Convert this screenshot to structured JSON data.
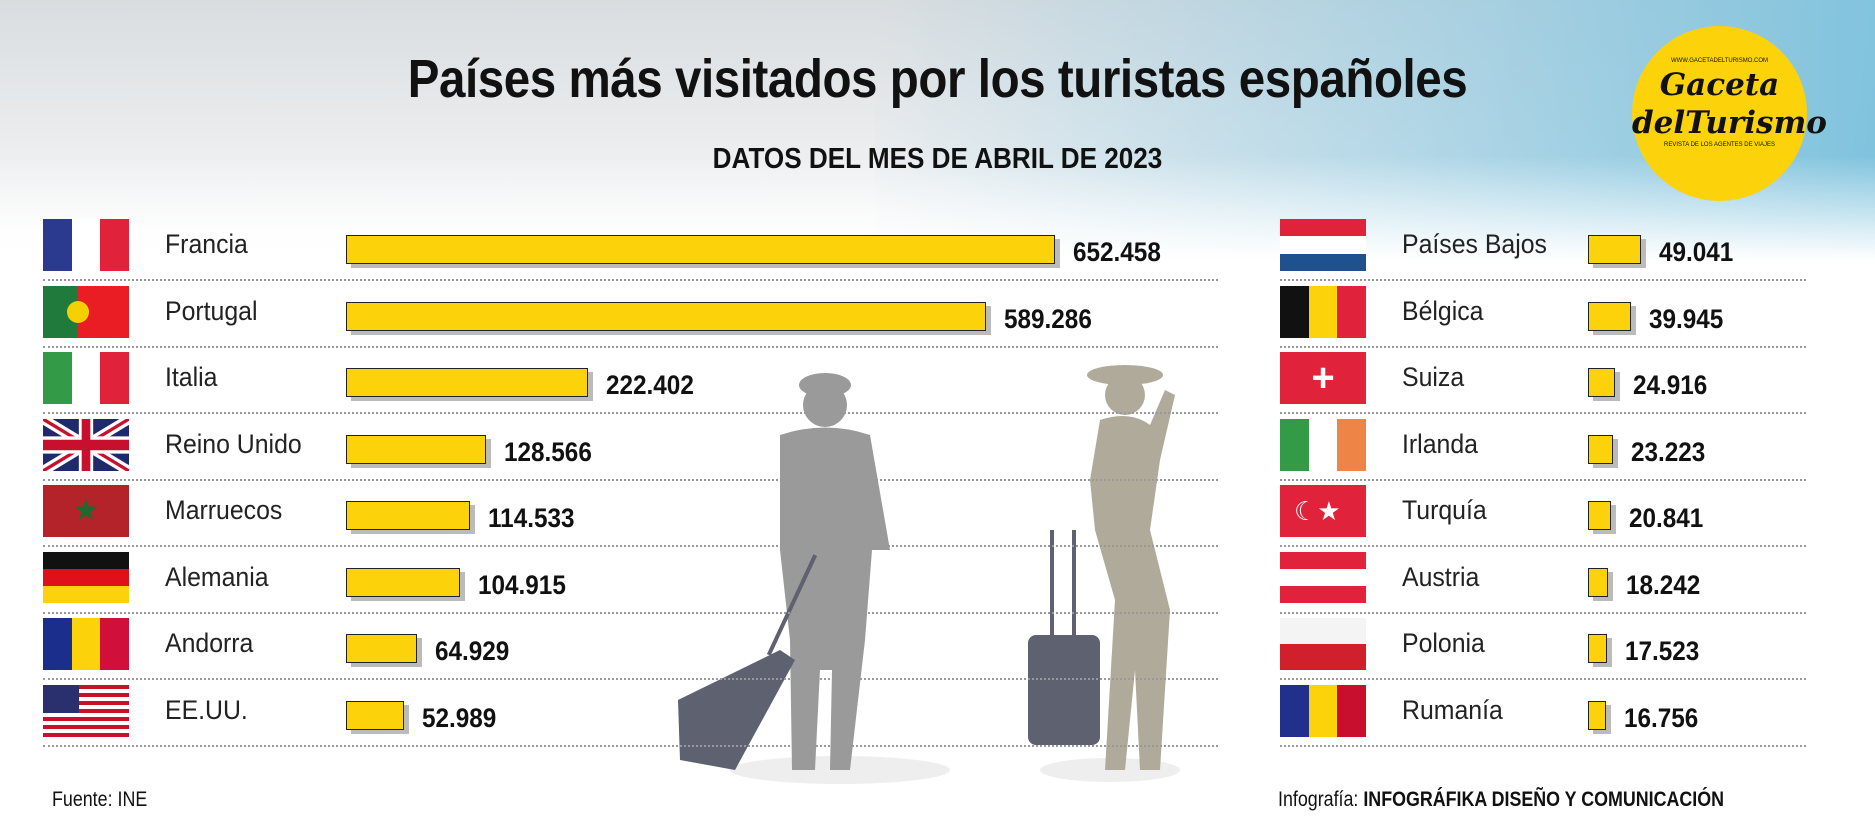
{
  "title": "Países más visitados por los turistas españoles",
  "subtitle": "DATOS DEL MES DE ABRIL DE 2023",
  "logo": {
    "url": "WWW.GACETADELTURISMO.COM",
    "name_line1": "Gaceta",
    "name_line2": "delTurismo",
    "tagline": "REVISTA DE LOS AGENTES DE VIAJES"
  },
  "source": "Fuente: INE",
  "credit_label": "Infografía:",
  "credit_name": "INFOGRÁFIKA DISEÑO Y COMUNICACIÓN",
  "colors": {
    "bar": "#fcd20b"
  },
  "chart_data": {
    "type": "bar",
    "title": "Países más visitados por los turistas españoles",
    "subtitle": "DATOS DEL MES DE ABRIL DE 2023",
    "orientation": "horizontal",
    "left": [
      {
        "country": "Francia",
        "value": 652458,
        "label": "652.458",
        "flag": "france"
      },
      {
        "country": "Portugal",
        "value": 589286,
        "label": "589.286",
        "flag": "portugal"
      },
      {
        "country": "Italia",
        "value": 222402,
        "label": "222.402",
        "flag": "italy"
      },
      {
        "country": "Reino Unido",
        "value": 128566,
        "label": "128.566",
        "flag": "uk"
      },
      {
        "country": "Marruecos",
        "value": 114533,
        "label": "114.533",
        "flag": "morocco"
      },
      {
        "country": "Alemania",
        "value": 104915,
        "label": "104.915",
        "flag": "germany"
      },
      {
        "country": "Andorra",
        "value": 64929,
        "label": "64.929",
        "flag": "andorra"
      },
      {
        "country": "EE.UU.",
        "value": 52989,
        "label": "52.989",
        "flag": "usa"
      }
    ],
    "right": [
      {
        "country": "Países Bajos",
        "value": 49041,
        "label": "49.041",
        "flag": "netherlands"
      },
      {
        "country": "Bélgica",
        "value": 39945,
        "label": "39.945",
        "flag": "belgium"
      },
      {
        "country": "Suiza",
        "value": 24916,
        "label": "24.916",
        "flag": "switzerland"
      },
      {
        "country": "Irlanda",
        "value": 23223,
        "label": "23.223",
        "flag": "ireland"
      },
      {
        "country": "Turquía",
        "value": 20841,
        "label": "20.841",
        "flag": "turkey"
      },
      {
        "country": "Austria",
        "value": 18242,
        "label": "18.242",
        "flag": "austria"
      },
      {
        "country": "Polonia",
        "value": 17523,
        "label": "17.523",
        "flag": "poland"
      },
      {
        "country": "Rumanía",
        "value": 16756,
        "label": "16.756",
        "flag": "romania"
      }
    ]
  }
}
